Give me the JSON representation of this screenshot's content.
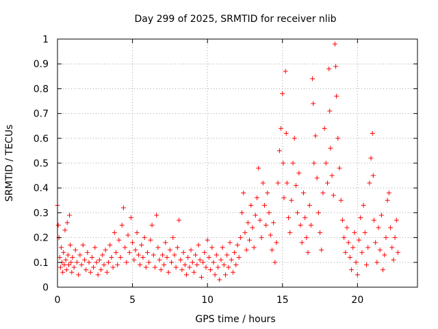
{
  "chart_data": {
    "type": "scatter",
    "title": "Day 299 of 2025, SRMTID for receiver nlib",
    "xlabel": "GPS time / hours",
    "ylabel": "SRMTID / TECUs",
    "xlim": [
      0,
      24
    ],
    "ylim": [
      0,
      1
    ],
    "x_ticks": [
      0,
      5,
      10,
      15,
      20
    ],
    "x_tick_labels": [
      "0",
      "5",
      "10",
      "15",
      "20"
    ],
    "y_ticks": [
      0,
      0.1,
      0.2,
      0.3,
      0.4,
      0.5,
      0.6,
      0.7,
      0.8,
      0.9,
      1
    ],
    "y_tick_labels": [
      "0",
      "0.1",
      "0.2",
      "0.3",
      "0.4",
      "0.5",
      "0.6",
      "0.7",
      "0.8",
      "0.9",
      "1"
    ],
    "grid": true,
    "marker": "+",
    "series": [
      {
        "name": "SRMTID",
        "color": "#ff0000",
        "points": [
          [
            0.0,
            0.33
          ],
          [
            0.05,
            0.25
          ],
          [
            0.1,
            0.2
          ],
          [
            0.15,
            0.12
          ],
          [
            0.2,
            0.08
          ],
          [
            0.25,
            0.16
          ],
          [
            0.3,
            0.1
          ],
          [
            0.35,
            0.06
          ],
          [
            0.4,
            0.14
          ],
          [
            0.45,
            0.09
          ],
          [
            0.5,
            0.23
          ],
          [
            0.55,
            0.11
          ],
          [
            0.6,
            0.07
          ],
          [
            0.65,
            0.26
          ],
          [
            0.7,
            0.13
          ],
          [
            0.75,
            0.09
          ],
          [
            0.8,
            0.29
          ],
          [
            0.85,
            0.17
          ],
          [
            0.9,
            0.1
          ],
          [
            0.95,
            0.06
          ],
          [
            1.0,
            0.12
          ],
          [
            1.1,
            0.08
          ],
          [
            1.2,
            0.15
          ],
          [
            1.3,
            0.1
          ],
          [
            1.4,
            0.05
          ],
          [
            1.5,
            0.13
          ],
          [
            1.6,
            0.09
          ],
          [
            1.7,
            0.17
          ],
          [
            1.8,
            0.11
          ],
          [
            1.9,
            0.07
          ],
          [
            2.0,
            0.14
          ],
          [
            2.1,
            0.1
          ],
          [
            2.2,
            0.06
          ],
          [
            2.3,
            0.12
          ],
          [
            2.4,
            0.08
          ],
          [
            2.5,
            0.16
          ],
          [
            2.6,
            0.1
          ],
          [
            2.7,
            0.05
          ],
          [
            2.8,
            0.11
          ],
          [
            2.9,
            0.07
          ],
          [
            3.0,
            0.13
          ],
          [
            3.1,
            0.09
          ],
          [
            3.2,
            0.15
          ],
          [
            3.3,
            0.06
          ],
          [
            3.4,
            0.1
          ],
          [
            3.5,
            0.17
          ],
          [
            3.6,
            0.12
          ],
          [
            3.7,
            0.08
          ],
          [
            3.8,
            0.22
          ],
          [
            3.9,
            0.14
          ],
          [
            4.0,
            0.09
          ],
          [
            4.1,
            0.19
          ],
          [
            4.2,
            0.12
          ],
          [
            4.3,
            0.25
          ],
          [
            4.4,
            0.32
          ],
          [
            4.5,
            0.16
          ],
          [
            4.6,
            0.1
          ],
          [
            4.7,
            0.21
          ],
          [
            4.8,
            0.14
          ],
          [
            4.9,
            0.28
          ],
          [
            5.0,
            0.18
          ],
          [
            5.1,
            0.11
          ],
          [
            5.2,
            0.15
          ],
          [
            5.3,
            0.22
          ],
          [
            5.4,
            0.13
          ],
          [
            5.5,
            0.09
          ],
          [
            5.6,
            0.17
          ],
          [
            5.7,
            0.12
          ],
          [
            5.8,
            0.2
          ],
          [
            5.9,
            0.08
          ],
          [
            6.0,
            0.14
          ],
          [
            6.1,
            0.1
          ],
          [
            6.2,
            0.19
          ],
          [
            6.3,
            0.25
          ],
          [
            6.4,
            0.13
          ],
          [
            6.5,
            0.08
          ],
          [
            6.6,
            0.29
          ],
          [
            6.7,
            0.16
          ],
          [
            6.8,
            0.11
          ],
          [
            6.9,
            0.07
          ],
          [
            7.0,
            0.13
          ],
          [
            7.1,
            0.09
          ],
          [
            7.2,
            0.18
          ],
          [
            7.3,
            0.12
          ],
          [
            7.4,
            0.06
          ],
          [
            7.5,
            0.15
          ],
          [
            7.6,
            0.1
          ],
          [
            7.7,
            0.2
          ],
          [
            7.8,
            0.13
          ],
          [
            7.9,
            0.08
          ],
          [
            8.0,
            0.16
          ],
          [
            8.1,
            0.27
          ],
          [
            8.2,
            0.11
          ],
          [
            8.3,
            0.07
          ],
          [
            8.4,
            0.14
          ],
          [
            8.5,
            0.09
          ],
          [
            8.6,
            0.05
          ],
          [
            8.7,
            0.12
          ],
          [
            8.8,
            0.08
          ],
          [
            8.9,
            0.15
          ],
          [
            9.0,
            0.1
          ],
          [
            9.1,
            0.06
          ],
          [
            9.2,
            0.13
          ],
          [
            9.3,
            0.09
          ],
          [
            9.4,
            0.17
          ],
          [
            9.5,
            0.11
          ],
          [
            9.6,
            0.04
          ],
          [
            9.7,
            0.1
          ],
          [
            9.8,
            0.14
          ],
          [
            9.9,
            0.08
          ],
          [
            10.0,
            0.19
          ],
          [
            10.1,
            0.12
          ],
          [
            10.2,
            0.07
          ],
          [
            10.3,
            0.16
          ],
          [
            10.4,
            0.1
          ],
          [
            10.5,
            0.05
          ],
          [
            10.6,
            0.13
          ],
          [
            10.7,
            0.08
          ],
          [
            10.8,
            0.03
          ],
          [
            10.9,
            0.11
          ],
          [
            11.0,
            0.16
          ],
          [
            11.1,
            0.09
          ],
          [
            11.2,
            0.05
          ],
          [
            11.3,
            0.13
          ],
          [
            11.4,
            0.08
          ],
          [
            11.5,
            0.18
          ],
          [
            11.6,
            0.11
          ],
          [
            11.7,
            0.06
          ],
          [
            11.8,
            0.14
          ],
          [
            11.9,
            0.09
          ],
          [
            12.0,
            0.17
          ],
          [
            12.1,
            0.12
          ],
          [
            12.2,
            0.2
          ],
          [
            12.3,
            0.3
          ],
          [
            12.4,
            0.38
          ],
          [
            12.5,
            0.22
          ],
          [
            12.6,
            0.15
          ],
          [
            12.7,
            0.26
          ],
          [
            12.8,
            0.19
          ],
          [
            12.9,
            0.33
          ],
          [
            13.0,
            0.24
          ],
          [
            13.1,
            0.16
          ],
          [
            13.2,
            0.29
          ],
          [
            13.3,
            0.36
          ],
          [
            13.4,
            0.48
          ],
          [
            13.5,
            0.27
          ],
          [
            13.6,
            0.2
          ],
          [
            13.7,
            0.42
          ],
          [
            13.8,
            0.33
          ],
          [
            13.9,
            0.25
          ],
          [
            14.0,
            0.38
          ],
          [
            14.1,
            0.3
          ],
          [
            14.2,
            0.21
          ],
          [
            14.3,
            0.15
          ],
          [
            14.4,
            0.26
          ],
          [
            14.5,
            0.1
          ],
          [
            14.6,
            0.18
          ],
          [
            14.7,
            0.42
          ],
          [
            14.8,
            0.55
          ],
          [
            14.9,
            0.64
          ],
          [
            15.0,
            0.78
          ],
          [
            15.05,
            0.5
          ],
          [
            15.1,
            0.36
          ],
          [
            15.2,
            0.87
          ],
          [
            15.25,
            0.62
          ],
          [
            15.3,
            0.42
          ],
          [
            15.4,
            0.28
          ],
          [
            15.5,
            0.22
          ],
          [
            15.6,
            0.35
          ],
          [
            15.7,
            0.5
          ],
          [
            15.8,
            0.6
          ],
          [
            15.9,
            0.41
          ],
          [
            16.0,
            0.3
          ],
          [
            16.1,
            0.46
          ],
          [
            16.2,
            0.25
          ],
          [
            16.3,
            0.18
          ],
          [
            16.4,
            0.38
          ],
          [
            16.5,
            0.28
          ],
          [
            16.6,
            0.2
          ],
          [
            16.7,
            0.14
          ],
          [
            16.8,
            0.33
          ],
          [
            16.9,
            0.25
          ],
          [
            17.0,
            0.84
          ],
          [
            17.05,
            0.74
          ],
          [
            17.1,
            0.5
          ],
          [
            17.2,
            0.61
          ],
          [
            17.3,
            0.44
          ],
          [
            17.4,
            0.3
          ],
          [
            17.5,
            0.22
          ],
          [
            17.6,
            0.15
          ],
          [
            17.7,
            0.38
          ],
          [
            17.8,
            0.64
          ],
          [
            17.9,
            0.5
          ],
          [
            18.0,
            0.42
          ],
          [
            18.1,
            0.88
          ],
          [
            18.15,
            0.71
          ],
          [
            18.2,
            0.56
          ],
          [
            18.3,
            0.45
          ],
          [
            18.4,
            0.37
          ],
          [
            18.5,
            0.98
          ],
          [
            18.55,
            0.89
          ],
          [
            18.6,
            0.77
          ],
          [
            18.7,
            0.6
          ],
          [
            18.8,
            0.48
          ],
          [
            18.9,
            0.35
          ],
          [
            19.0,
            0.27
          ],
          [
            19.1,
            0.2
          ],
          [
            19.2,
            0.14
          ],
          [
            19.3,
            0.24
          ],
          [
            19.4,
            0.18
          ],
          [
            19.5,
            0.12
          ],
          [
            19.6,
            0.07
          ],
          [
            19.7,
            0.16
          ],
          [
            19.8,
            0.22
          ],
          [
            19.9,
            0.1
          ],
          [
            20.0,
            0.05
          ],
          [
            20.1,
            0.19
          ],
          [
            20.2,
            0.28
          ],
          [
            20.3,
            0.14
          ],
          [
            20.4,
            0.33
          ],
          [
            20.5,
            0.22
          ],
          [
            20.6,
            0.09
          ],
          [
            20.7,
            0.16
          ],
          [
            20.8,
            0.42
          ],
          [
            20.9,
            0.52
          ],
          [
            21.0,
            0.62
          ],
          [
            21.05,
            0.45
          ],
          [
            21.1,
            0.27
          ],
          [
            21.2,
            0.18
          ],
          [
            21.3,
            0.1
          ],
          [
            21.4,
            0.24
          ],
          [
            21.5,
            0.15
          ],
          [
            21.6,
            0.29
          ],
          [
            21.7,
            0.07
          ],
          [
            21.8,
            0.13
          ],
          [
            21.9,
            0.2
          ],
          [
            22.0,
            0.35
          ],
          [
            22.1,
            0.38
          ],
          [
            22.2,
            0.24
          ],
          [
            22.3,
            0.16
          ],
          [
            22.4,
            0.11
          ],
          [
            22.5,
            0.2
          ],
          [
            22.6,
            0.27
          ],
          [
            22.7,
            0.14
          ]
        ]
      }
    ]
  }
}
